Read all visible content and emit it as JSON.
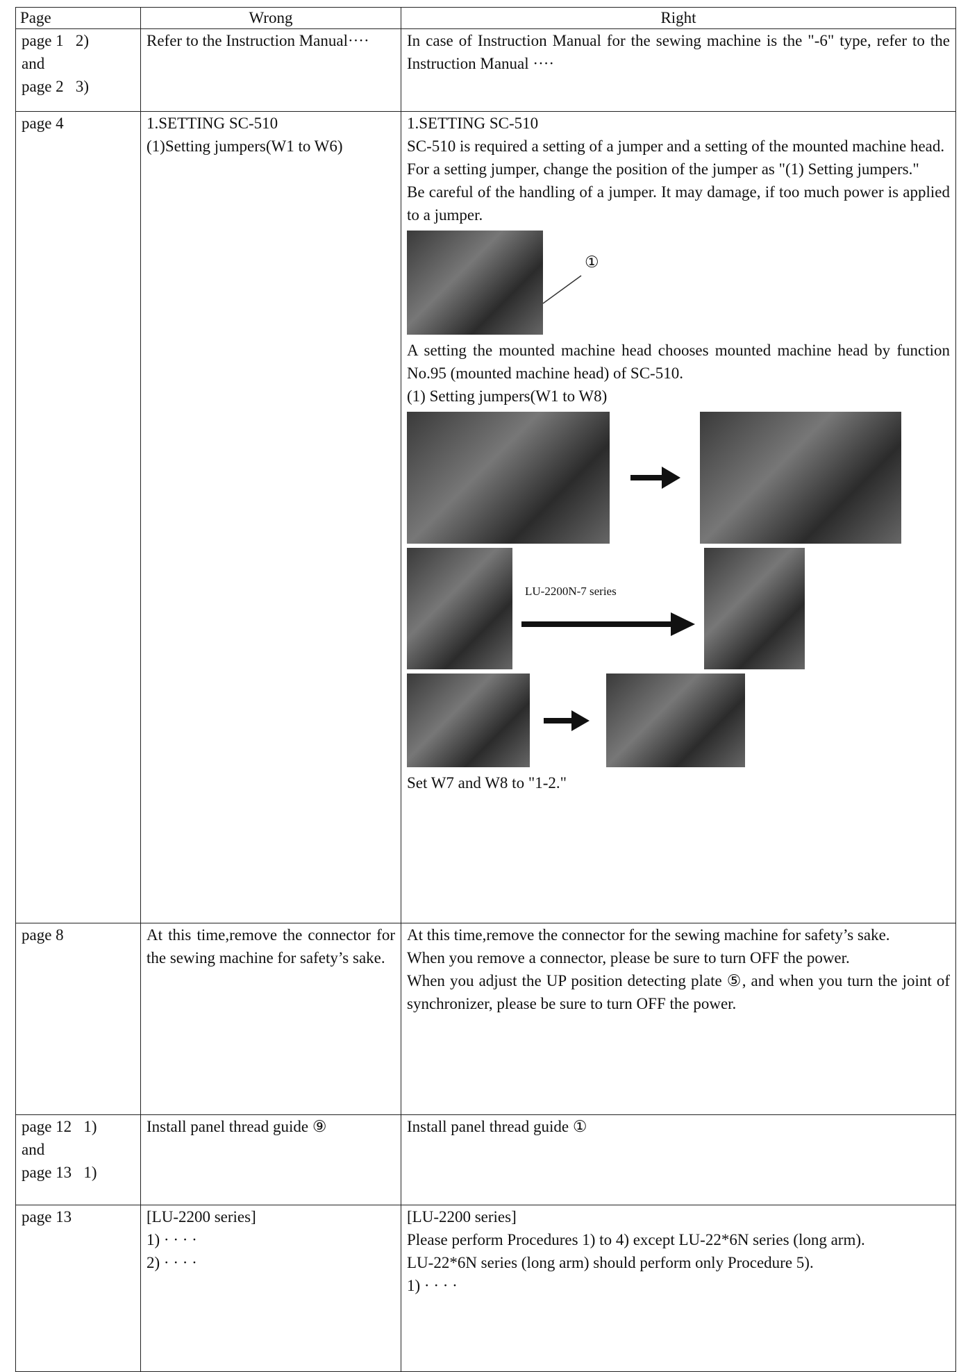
{
  "table": {
    "header": [
      "Page",
      "Wrong",
      "Right"
    ],
    "rows": [
      {
        "page": [
          "page 1   2)",
          "and",
          "page 2   3)"
        ],
        "wrong": [
          "Refer to the Instruction Manual····"
        ],
        "right": [
          "In case of  Instruction  Manual for the sewing machine is the \"-6\" type, refer to the Instruction Manual ····"
        ]
      },
      {
        "page": [
          "page 4"
        ],
        "wrong": [
          "1.SETTING SC-510",
          "(1)Setting jumpers(W1 to W6)"
        ],
        "right": [
          "1.SETTING SC-510",
          "SC-510 is required a setting of a jumper and a setting of the mounted machine head.",
          "For a setting jumper, change the position of the jumper as \"(1) Setting jumpers.\"",
          "Be careful of the handling of a jumper. It may damage, if too much power is applied to a jumper.",
          "①",
          "A setting the mounted machine head chooses mounted machine head by function No.95 (mounted machine head) of SC-510.",
          "(1)  Setting jumpers(W1 to W8)",
          "LU-2200N-7 series",
          "Set W7 and W8 to \"1-2.\""
        ]
      },
      {
        "page": [
          "page 8"
        ],
        "wrong": [
          "At this time,remove the connector for the sewing machine for safety’s sake."
        ],
        "right": [
          "At this time,remove the connector for the sewing machine for safety’s sake.",
          "When you remove a connector, please be sure to turn OFF the power.",
          "When you adjust the UP position detecting plate ⑤, and when you turn the   joint of synchronizer, please be sure to turn OFF the power."
        ]
      },
      {
        "page": [
          "page 12   1)",
          "and",
          "page 13   1)"
        ],
        "wrong": [
          "Install panel thread guide ⑨"
        ],
        "right": [
          "Install panel thread guide ①"
        ]
      },
      {
        "page": [
          "page 13"
        ],
        "wrong": [
          "[LU-2200 series]",
          "1) · · · ·",
          "2) · · · ·"
        ],
        "right": [
          "[LU-2200 series]",
          "Please perform Procedures 1) to 4) except LU-22*6N series (long arm).",
          "LU-22*6N series (long arm) should perform only Procedure 5).",
          "1) · · · ·"
        ]
      }
    ]
  }
}
